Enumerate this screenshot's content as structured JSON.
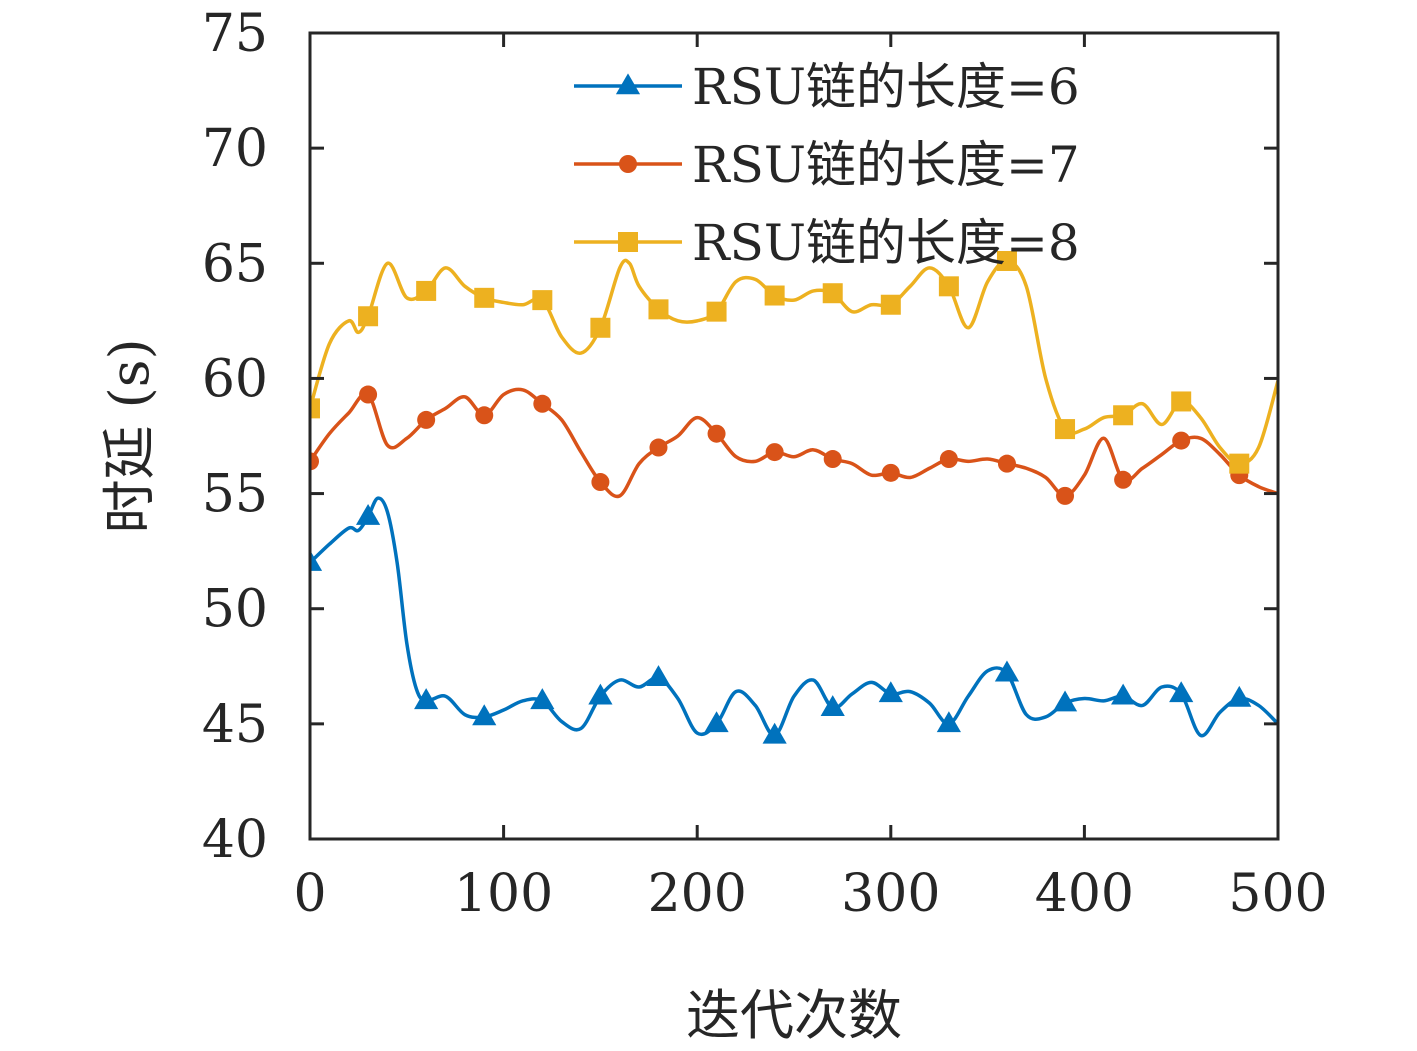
{
  "chart_data": {
    "type": "line",
    "xlabel": "迭代次数",
    "ylabel": "时延 (s)",
    "xlim": [
      0,
      500
    ],
    "ylim": [
      40,
      75
    ],
    "xticks": [
      0,
      100,
      200,
      300,
      400,
      500
    ],
    "yticks": [
      40,
      45,
      50,
      55,
      60,
      65,
      70,
      75
    ],
    "grid": false,
    "legend_position": "top-right",
    "series": [
      {
        "name": "RSU链的长度=6",
        "color": "#0072BD",
        "marker": "triangle",
        "points": [
          [
            0,
            52
          ],
          [
            10,
            52.8
          ],
          [
            20,
            53.5
          ],
          [
            25,
            53.4
          ],
          [
            30,
            54
          ],
          [
            35,
            54.8
          ],
          [
            40,
            54.2
          ],
          [
            45,
            52
          ],
          [
            50,
            48.5
          ],
          [
            55,
            46.5
          ],
          [
            60,
            46
          ],
          [
            70,
            46.2
          ],
          [
            80,
            45.4
          ],
          [
            90,
            45.3
          ],
          [
            100,
            45.6
          ],
          [
            110,
            46
          ],
          [
            120,
            46
          ],
          [
            130,
            45.1
          ],
          [
            140,
            44.8
          ],
          [
            150,
            46.2
          ],
          [
            160,
            46.9
          ],
          [
            170,
            46.6
          ],
          [
            180,
            47
          ],
          [
            190,
            46.1
          ],
          [
            200,
            44.6
          ],
          [
            210,
            45
          ],
          [
            220,
            46.4
          ],
          [
            230,
            45.8
          ],
          [
            240,
            44.5
          ],
          [
            250,
            46.2
          ],
          [
            260,
            46.9
          ],
          [
            270,
            45.7
          ],
          [
            280,
            46.3
          ],
          [
            290,
            46.8
          ],
          [
            300,
            46.3
          ],
          [
            310,
            46.4
          ],
          [
            320,
            45.9
          ],
          [
            330,
            45
          ],
          [
            340,
            46.2
          ],
          [
            350,
            47.3
          ],
          [
            360,
            47.2
          ],
          [
            370,
            45.4
          ],
          [
            380,
            45.3
          ],
          [
            390,
            45.9
          ],
          [
            400,
            46.1
          ],
          [
            410,
            46
          ],
          [
            420,
            46.2
          ],
          [
            430,
            45.8
          ],
          [
            440,
            46.6
          ],
          [
            450,
            46.3
          ],
          [
            460,
            44.5
          ],
          [
            470,
            45.5
          ],
          [
            480,
            46.1
          ],
          [
            490,
            45.8
          ],
          [
            500,
            45
          ]
        ]
      },
      {
        "name": "RSU链的长度=7",
        "color": "#D95319",
        "marker": "circle",
        "points": [
          [
            0,
            56.4
          ],
          [
            10,
            57.6
          ],
          [
            20,
            58.5
          ],
          [
            30,
            59.3
          ],
          [
            40,
            57.1
          ],
          [
            50,
            57.4
          ],
          [
            60,
            58.2
          ],
          [
            70,
            58.7
          ],
          [
            80,
            59.2
          ],
          [
            90,
            58.4
          ],
          [
            100,
            59.3
          ],
          [
            110,
            59.5
          ],
          [
            120,
            58.9
          ],
          [
            130,
            58.2
          ],
          [
            140,
            56.8
          ],
          [
            150,
            55.5
          ],
          [
            160,
            54.9
          ],
          [
            170,
            56.3
          ],
          [
            180,
            57
          ],
          [
            190,
            57.5
          ],
          [
            200,
            58.3
          ],
          [
            210,
            57.6
          ],
          [
            220,
            56.6
          ],
          [
            230,
            56.4
          ],
          [
            240,
            56.8
          ],
          [
            250,
            56.6
          ],
          [
            260,
            56.9
          ],
          [
            270,
            56.5
          ],
          [
            280,
            56.3
          ],
          [
            290,
            55.8
          ],
          [
            300,
            55.9
          ],
          [
            310,
            55.7
          ],
          [
            320,
            56.1
          ],
          [
            330,
            56.5
          ],
          [
            340,
            56.4
          ],
          [
            350,
            56.5
          ],
          [
            360,
            56.3
          ],
          [
            370,
            56.1
          ],
          [
            380,
            55.7
          ],
          [
            390,
            54.9
          ],
          [
            400,
            55.8
          ],
          [
            410,
            57.4
          ],
          [
            420,
            55.6
          ],
          [
            430,
            56.1
          ],
          [
            440,
            56.7
          ],
          [
            450,
            57.3
          ],
          [
            460,
            57.4
          ],
          [
            470,
            56.7
          ],
          [
            480,
            55.8
          ],
          [
            490,
            55.3
          ],
          [
            500,
            55
          ]
        ]
      },
      {
        "name": "RSU链的长度=8",
        "color": "#EDB120",
        "marker": "square",
        "points": [
          [
            0,
            58.7
          ],
          [
            10,
            61.5
          ],
          [
            20,
            62.5
          ],
          [
            25,
            62
          ],
          [
            30,
            62.7
          ],
          [
            40,
            65
          ],
          [
            50,
            63.5
          ],
          [
            60,
            63.8
          ],
          [
            70,
            64.8
          ],
          [
            80,
            64
          ],
          [
            90,
            63.5
          ],
          [
            100,
            63.3
          ],
          [
            110,
            63.2
          ],
          [
            120,
            63.4
          ],
          [
            130,
            61.8
          ],
          [
            140,
            61.1
          ],
          [
            150,
            62.2
          ],
          [
            160,
            64.8
          ],
          [
            165,
            65
          ],
          [
            170,
            64
          ],
          [
            180,
            63
          ],
          [
            190,
            62.5
          ],
          [
            200,
            62.5
          ],
          [
            210,
            62.9
          ],
          [
            220,
            64.2
          ],
          [
            230,
            64.3
          ],
          [
            240,
            63.6
          ],
          [
            250,
            63.4
          ],
          [
            260,
            63.8
          ],
          [
            270,
            63.7
          ],
          [
            280,
            62.9
          ],
          [
            290,
            63.2
          ],
          [
            300,
            63.2
          ],
          [
            310,
            64
          ],
          [
            320,
            64.8
          ],
          [
            330,
            64
          ],
          [
            340,
            62.2
          ],
          [
            350,
            64.2
          ],
          [
            360,
            65.1
          ],
          [
            370,
            64
          ],
          [
            380,
            60
          ],
          [
            390,
            57.8
          ],
          [
            400,
            57.8
          ],
          [
            410,
            58.3
          ],
          [
            420,
            58.4
          ],
          [
            430,
            58.9
          ],
          [
            440,
            58
          ],
          [
            450,
            59
          ],
          [
            460,
            58.3
          ],
          [
            470,
            57
          ],
          [
            480,
            56.3
          ],
          [
            490,
            57
          ],
          [
            500,
            59.9
          ]
        ]
      }
    ],
    "markers": [
      {
        "series": 0,
        "x": [
          0,
          30,
          60,
          90,
          120,
          150,
          180,
          210,
          240,
          270,
          300,
          330,
          360,
          390,
          420,
          450,
          480
        ],
        "y": [
          52,
          54,
          46,
          45.3,
          46,
          46.2,
          47,
          45,
          44.5,
          45.7,
          46.3,
          45,
          47.2,
          45.9,
          46.2,
          46.3,
          46.1
        ]
      },
      {
        "series": 1,
        "x": [
          0,
          30,
          60,
          90,
          120,
          150,
          180,
          210,
          240,
          270,
          300,
          330,
          360,
          390,
          420,
          450,
          480
        ],
        "y": [
          56.4,
          59.3,
          58.2,
          58.4,
          58.9,
          55.5,
          57,
          57.6,
          56.8,
          56.5,
          55.9,
          56.5,
          56.3,
          54.9,
          55.6,
          57.3,
          55.8
        ]
      },
      {
        "series": 2,
        "x": [
          0,
          30,
          60,
          90,
          120,
          150,
          180,
          210,
          240,
          270,
          300,
          330,
          360,
          390,
          420,
          450,
          480
        ],
        "y": [
          58.7,
          62.7,
          63.8,
          63.5,
          63.4,
          62.2,
          63,
          62.9,
          63.6,
          63.7,
          63.2,
          64,
          65.1,
          57.8,
          58.4,
          59,
          56.3
        ]
      }
    ]
  }
}
